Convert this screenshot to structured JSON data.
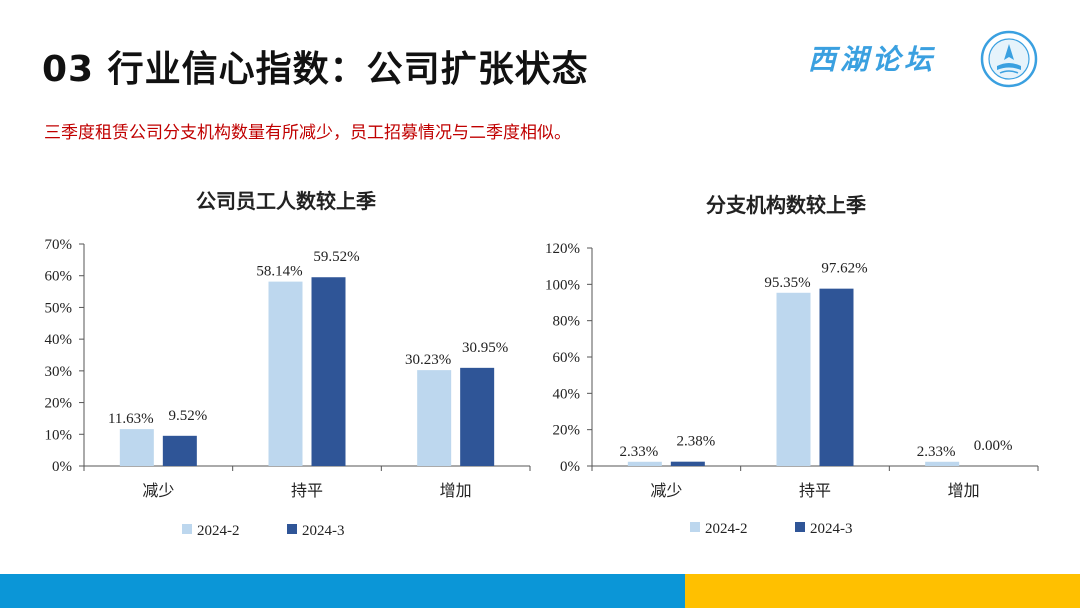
{
  "header": {
    "title": "03 行业信心指数：公司扩张状态",
    "subtitle": "三季度租赁公司分支机构数量有所减少，员工招募情况与二季度相似。",
    "brand": "西湖论坛"
  },
  "colors": {
    "series_light": "#bdd7ee",
    "series_dark": "#2f5597",
    "accent_red": "#c00000",
    "footer_blue": "#0b96d7",
    "footer_yellow": "#ffc000"
  },
  "chart_data": [
    {
      "type": "bar",
      "title": "公司员工人数较上季",
      "categories": [
        "减少",
        "持平",
        "增加"
      ],
      "series": [
        {
          "name": "2024-2",
          "values": [
            11.63,
            58.14,
            30.23
          ],
          "labels": [
            "11.63%",
            "58.14%",
            "30.23%"
          ]
        },
        {
          "name": "2024-3",
          "values": [
            9.52,
            59.52,
            30.95
          ],
          "labels": [
            "9.52%",
            "59.52%",
            "30.95%"
          ]
        }
      ],
      "ylim": [
        0,
        70
      ],
      "yticks": [
        "0%",
        "10%",
        "20%",
        "30%",
        "40%",
        "50%",
        "60%",
        "70%"
      ],
      "legend": "bottom"
    },
    {
      "type": "bar",
      "title": "分支机构数较上季",
      "categories": [
        "减少",
        "持平",
        "增加"
      ],
      "series": [
        {
          "name": "2024-2",
          "values": [
            2.33,
            95.35,
            2.33
          ],
          "labels": [
            "2.33%",
            "95.35%",
            "2.33%"
          ]
        },
        {
          "name": "2024-3",
          "values": [
            2.38,
            97.62,
            0.0
          ],
          "labels": [
            "2.38%",
            "97.62%",
            "0.00%"
          ]
        }
      ],
      "ylim": [
        0,
        120
      ],
      "yticks": [
        "0%",
        "20%",
        "40%",
        "60%",
        "80%",
        "100%",
        "120%"
      ],
      "legend": "bottom"
    }
  ]
}
